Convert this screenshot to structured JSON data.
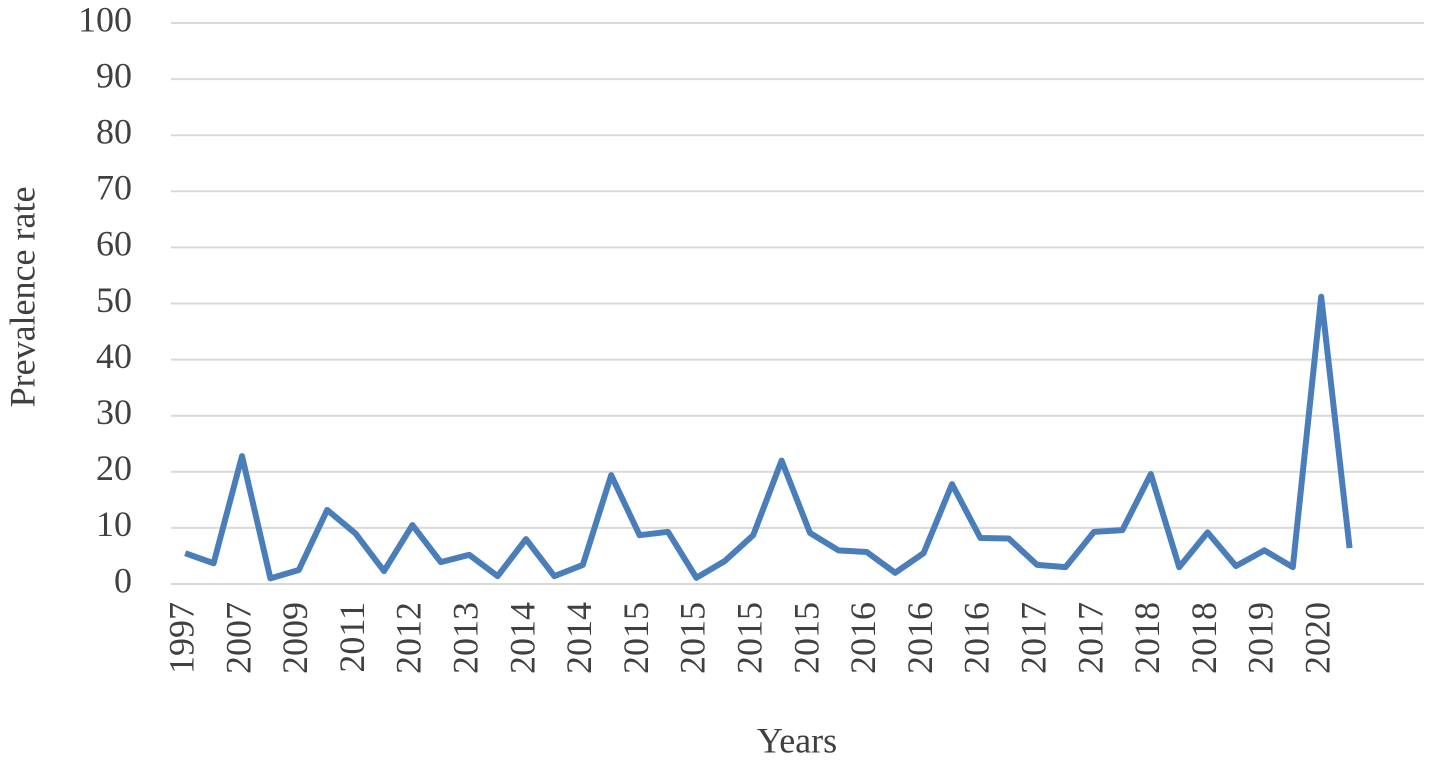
{
  "chart_data": {
    "type": "line",
    "y_label": "Prevalence rate",
    "x_label": "Years",
    "categories": [
      "1997",
      null,
      "2007",
      null,
      "2009",
      null,
      "2011",
      null,
      "2012",
      null,
      "2013",
      null,
      "2014",
      null,
      "2014",
      null,
      "2015",
      null,
      "2015",
      null,
      "2015",
      null,
      "2015",
      null,
      "2016",
      null,
      "2016",
      null,
      "2016",
      null,
      "2017",
      null,
      "2017",
      null,
      "2018",
      null,
      "2018",
      null,
      "2019",
      null,
      "2020",
      null
    ],
    "series": [
      {
        "color": "#4a7ebb",
        "values": [
          5.5,
          3.7,
          22.8,
          1,
          2.5,
          13.2,
          9,
          2.3,
          10.5,
          3.9,
          5.2,
          1.4,
          8,
          1.4,
          3.4,
          19.4,
          8.7,
          9.3,
          1.1,
          4.1,
          8.7,
          22,
          9.1,
          6,
          5.7,
          2,
          5.5,
          17.8,
          8.2,
          8.1,
          3.4,
          3,
          9.3,
          9.6,
          19.6,
          3,
          9.2,
          3.2,
          6,
          3,
          51.2,
          6.4
        ]
      }
    ],
    "ylim": [
      0,
      100
    ],
    "yticks": [
      0,
      10,
      20,
      30,
      40,
      50,
      60,
      70,
      80,
      90,
      100
    ],
    "grid": true
  }
}
